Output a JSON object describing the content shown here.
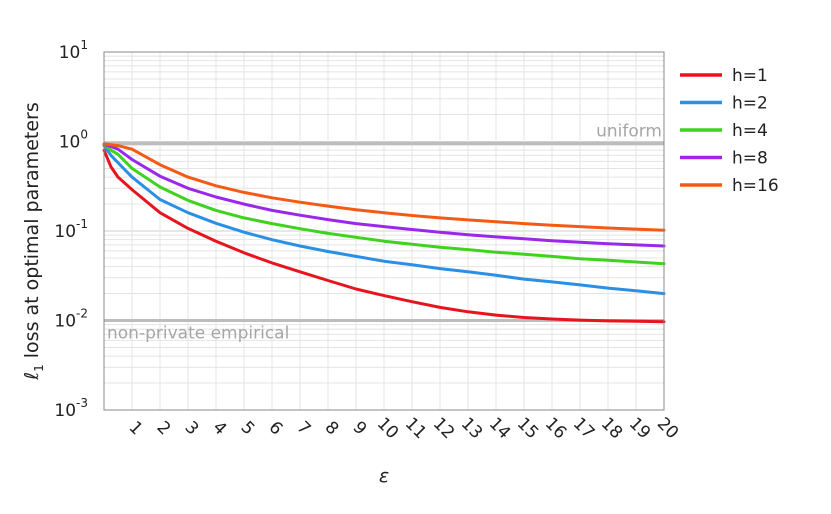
{
  "chart_data": {
    "type": "line",
    "title": "",
    "xlabel": "ε",
    "ylabel": "loss at optimal parameters",
    "ylabel_prefix": "ℓ",
    "ylabel_sub": "1",
    "yscale": "log",
    "xlim": [
      0,
      20
    ],
    "ylim": [
      0.001,
      10
    ],
    "grid": true,
    "legend_position": "right",
    "x_ticks": [
      "1",
      "2",
      "3",
      "4",
      "5",
      "6",
      "7",
      "8",
      "9",
      "10",
      "11",
      "12",
      "13",
      "14",
      "15",
      "16",
      "17",
      "18",
      "19",
      "20"
    ],
    "y_ticks": [
      {
        "value": 0.001,
        "base": "10",
        "exp": "-3"
      },
      {
        "value": 0.01,
        "base": "10",
        "exp": "-2"
      },
      {
        "value": 0.1,
        "base": "10",
        "exp": "-1"
      },
      {
        "value": 1,
        "base": "10",
        "exp": "0"
      },
      {
        "value": 10,
        "base": "10",
        "exp": "1"
      }
    ],
    "reference_lines": [
      {
        "label": "uniform",
        "value": 0.95,
        "color": "#bdbdbd"
      },
      {
        "label": "non-private empirical",
        "value": 0.01,
        "color": "#bdbdbd"
      }
    ],
    "x": [
      0,
      0.25,
      0.5,
      1,
      2,
      3,
      4,
      5,
      6,
      7,
      8,
      9,
      10,
      11,
      12,
      13,
      14,
      15,
      16,
      17,
      18,
      19,
      20
    ],
    "series": [
      {
        "name": "h=1",
        "color": "#e8141d",
        "values": [
          0.8,
          0.52,
          0.4,
          0.29,
          0.16,
          0.107,
          0.077,
          0.057,
          0.044,
          0.035,
          0.028,
          0.0225,
          0.019,
          0.0162,
          0.014,
          0.0125,
          0.0115,
          0.0108,
          0.0104,
          0.0101,
          0.0099,
          0.0098,
          0.0097
        ]
      },
      {
        "name": "h=2",
        "color": "#2b8fe3",
        "values": [
          0.9,
          0.7,
          0.58,
          0.4,
          0.225,
          0.16,
          0.122,
          0.097,
          0.08,
          0.068,
          0.059,
          0.052,
          0.046,
          0.042,
          0.038,
          0.035,
          0.032,
          0.029,
          0.027,
          0.025,
          0.023,
          0.0215,
          0.02
        ]
      },
      {
        "name": "h=4",
        "color": "#3fd21f",
        "values": [
          0.92,
          0.8,
          0.72,
          0.5,
          0.31,
          0.22,
          0.17,
          0.14,
          0.121,
          0.106,
          0.094,
          0.085,
          0.077,
          0.071,
          0.066,
          0.062,
          0.058,
          0.055,
          0.052,
          0.049,
          0.047,
          0.045,
          0.043
        ]
      },
      {
        "name": "h=8",
        "color": "#9b27ea",
        "values": [
          0.93,
          0.88,
          0.82,
          0.63,
          0.41,
          0.3,
          0.24,
          0.2,
          0.17,
          0.15,
          0.134,
          0.121,
          0.112,
          0.104,
          0.097,
          0.091,
          0.086,
          0.082,
          0.078,
          0.075,
          0.072,
          0.07,
          0.068
        ]
      },
      {
        "name": "h=16",
        "color": "#f55a14",
        "values": [
          0.94,
          0.92,
          0.9,
          0.82,
          0.55,
          0.4,
          0.32,
          0.27,
          0.235,
          0.21,
          0.19,
          0.173,
          0.16,
          0.149,
          0.14,
          0.133,
          0.127,
          0.121,
          0.116,
          0.112,
          0.108,
          0.105,
          0.102
        ]
      }
    ]
  }
}
